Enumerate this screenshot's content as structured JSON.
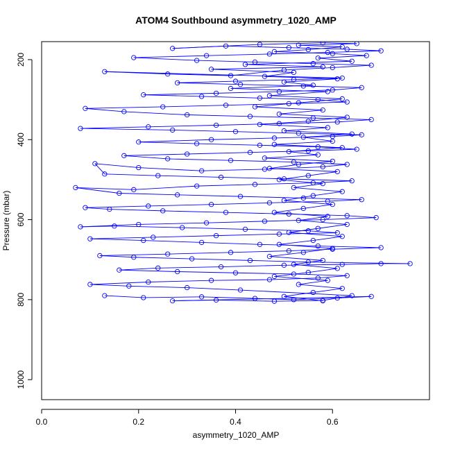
{
  "chart_data": {
    "type": "line",
    "title": "ATOM4 Southbound asymmetry_1020_AMP",
    "xlabel": "asymmetry_1020_AMP",
    "ylabel": "Pressure (mbar)",
    "xlim": [
      0.0,
      0.8
    ],
    "ylim": [
      1050,
      155
    ],
    "y_reversed": true,
    "x_ticks": [
      "0.0",
      "0.2",
      "0.4",
      "0.6"
    ],
    "x_tick_values": [
      0.0,
      0.2,
      0.4,
      0.6
    ],
    "y_ticks": [
      "200",
      "400",
      "600",
      "800",
      "1000"
    ],
    "y_tick_values": [
      200,
      400,
      600,
      800,
      1000
    ],
    "marker": "open-circle",
    "series_color": "#0000ff",
    "grid": false,
    "legend": "none",
    "series": [
      {
        "points": [
          [
            0.13,
            790
          ],
          [
            0.21,
            795
          ],
          [
            0.33,
            793
          ],
          [
            0.44,
            797
          ],
          [
            0.52,
            800
          ],
          [
            0.61,
            796
          ],
          [
            0.68,
            792
          ],
          [
            0.27,
            803
          ],
          [
            0.36,
            801
          ],
          [
            0.48,
            804
          ],
          [
            0.58,
            802
          ],
          [
            0.64,
            790
          ],
          [
            0.41,
            776
          ],
          [
            0.3,
            770
          ],
          [
            0.18,
            766
          ],
          [
            0.1,
            762
          ],
          [
            0.22,
            756
          ],
          [
            0.35,
            752
          ],
          [
            0.47,
            750
          ],
          [
            0.57,
            746
          ],
          [
            0.63,
            740
          ],
          [
            0.52,
            736
          ],
          [
            0.4,
            733
          ],
          [
            0.28,
            730
          ],
          [
            0.16,
            726
          ],
          [
            0.24,
            721
          ],
          [
            0.37,
            718
          ],
          [
            0.5,
            714
          ],
          [
            0.62,
            712
          ],
          [
            0.7,
            710
          ],
          [
            0.76,
            710
          ],
          [
            0.55,
            706
          ],
          [
            0.43,
            702
          ],
          [
            0.31,
            698
          ],
          [
            0.19,
            694
          ],
          [
            0.12,
            690
          ],
          [
            0.26,
            686
          ],
          [
            0.39,
            682
          ],
          [
            0.51,
            678
          ],
          [
            0.6,
            674
          ],
          [
            0.7,
            670
          ],
          [
            0.57,
            666
          ],
          [
            0.45,
            662
          ],
          [
            0.33,
            657
          ],
          [
            0.21,
            652
          ],
          [
            0.1,
            648
          ],
          [
            0.23,
            644
          ],
          [
            0.36,
            640
          ],
          [
            0.49,
            636
          ],
          [
            0.61,
            633
          ],
          [
            0.55,
            628
          ],
          [
            0.42,
            624
          ],
          [
            0.29,
            620
          ],
          [
            0.15,
            616
          ],
          [
            0.08,
            618
          ],
          [
            0.2,
            612
          ],
          [
            0.34,
            608
          ],
          [
            0.46,
            604
          ],
          [
            0.58,
            600
          ],
          [
            0.69,
            595
          ],
          [
            0.63,
            590
          ],
          [
            0.51,
            586
          ],
          [
            0.38,
            582
          ],
          [
            0.25,
            578
          ],
          [
            0.14,
            574
          ],
          [
            0.09,
            570
          ],
          [
            0.22,
            566
          ],
          [
            0.35,
            562
          ],
          [
            0.47,
            558
          ],
          [
            0.59,
            554
          ],
          [
            0.66,
            550
          ],
          [
            0.54,
            546
          ],
          [
            0.41,
            542
          ],
          [
            0.28,
            538
          ],
          [
            0.16,
            534
          ],
          [
            0.07,
            520
          ],
          [
            0.19,
            525
          ],
          [
            0.32,
            516
          ],
          [
            0.44,
            512
          ],
          [
            0.56,
            508
          ],
          [
            0.64,
            503
          ],
          [
            0.5,
            498
          ],
          [
            0.37,
            494
          ],
          [
            0.24,
            490
          ],
          [
            0.13,
            486
          ],
          [
            0.11,
            460
          ],
          [
            0.2,
            470
          ],
          [
            0.33,
            478
          ],
          [
            0.46,
            474
          ],
          [
            0.58,
            468
          ],
          [
            0.63,
            462
          ],
          [
            0.52,
            456
          ],
          [
            0.39,
            452
          ],
          [
            0.26,
            448
          ],
          [
            0.17,
            440
          ],
          [
            0.3,
            436
          ],
          [
            0.43,
            432
          ],
          [
            0.55,
            428
          ],
          [
            0.65,
            424
          ],
          [
            0.57,
            418
          ],
          [
            0.45,
            414
          ],
          [
            0.32,
            410
          ],
          [
            0.2,
            406
          ],
          [
            0.35,
            400
          ],
          [
            0.48,
            396
          ],
          [
            0.6,
            392
          ],
          [
            0.66,
            388
          ],
          [
            0.53,
            384
          ],
          [
            0.4,
            380
          ],
          [
            0.27,
            376
          ],
          [
            0.08,
            372
          ],
          [
            0.22,
            368
          ],
          [
            0.36,
            364
          ],
          [
            0.49,
            360
          ],
          [
            0.61,
            356
          ],
          [
            0.68,
            350
          ],
          [
            0.56,
            346
          ],
          [
            0.43,
            342
          ],
          [
            0.3,
            338
          ],
          [
            0.17,
            330
          ],
          [
            0.09,
            322
          ],
          [
            0.25,
            318
          ],
          [
            0.38,
            314
          ],
          [
            0.51,
            310
          ],
          [
            0.63,
            306
          ],
          [
            0.57,
            300
          ],
          [
            0.45,
            296
          ],
          [
            0.33,
            292
          ],
          [
            0.21,
            288
          ],
          [
            0.36,
            284
          ],
          [
            0.49,
            280
          ],
          [
            0.6,
            276
          ],
          [
            0.66,
            270
          ],
          [
            0.54,
            266
          ],
          [
            0.41,
            262
          ],
          [
            0.28,
            258
          ],
          [
            0.4,
            254
          ],
          [
            0.52,
            250
          ],
          [
            0.62,
            246
          ],
          [
            0.13,
            230
          ],
          [
            0.26,
            236
          ],
          [
            0.39,
            240
          ],
          [
            0.5,
            226
          ],
          [
            0.6,
            220
          ],
          [
            0.68,
            214
          ],
          [
            0.56,
            210
          ],
          [
            0.44,
            206
          ],
          [
            0.32,
            202
          ],
          [
            0.19,
            195
          ],
          [
            0.34,
            190
          ],
          [
            0.47,
            186
          ],
          [
            0.59,
            182
          ],
          [
            0.7,
            178
          ],
          [
            0.63,
            174
          ],
          [
            0.51,
            170
          ],
          [
            0.38,
            166
          ],
          [
            0.27,
            172
          ],
          [
            0.45,
            162
          ],
          [
            0.58,
            158
          ],
          [
            0.65,
            160
          ],
          [
            0.53,
            164
          ],
          [
            0.62,
            168
          ],
          [
            0.55,
            175
          ],
          [
            0.48,
            180
          ],
          [
            0.6,
            185
          ],
          [
            0.67,
            190
          ],
          [
            0.57,
            196
          ],
          [
            0.64,
            204
          ],
          [
            0.42,
            212
          ],
          [
            0.58,
            218
          ],
          [
            0.35,
            224
          ],
          [
            0.52,
            232
          ],
          [
            0.46,
            242
          ],
          [
            0.61,
            248
          ],
          [
            0.5,
            256
          ],
          [
            0.56,
            264
          ],
          [
            0.39,
            272
          ],
          [
            0.59,
            280
          ],
          [
            0.47,
            290
          ],
          [
            0.62,
            298
          ],
          [
            0.53,
            308
          ],
          [
            0.44,
            318
          ],
          [
            0.58,
            326
          ],
          [
            0.49,
            336
          ],
          [
            0.63,
            344
          ],
          [
            0.55,
            354
          ],
          [
            0.45,
            362
          ],
          [
            0.59,
            370
          ],
          [
            0.5,
            378
          ],
          [
            0.64,
            386
          ],
          [
            0.54,
            394
          ],
          [
            0.6,
            404
          ],
          [
            0.48,
            412
          ],
          [
            0.62,
            420
          ],
          [
            0.51,
            430
          ],
          [
            0.57,
            438
          ],
          [
            0.46,
            446
          ],
          [
            0.6,
            454
          ],
          [
            0.53,
            462
          ],
          [
            0.47,
            472
          ],
          [
            0.61,
            480
          ],
          [
            0.55,
            490
          ],
          [
            0.49,
            500
          ],
          [
            0.58,
            510
          ],
          [
            0.52,
            520
          ],
          [
            0.62,
            530
          ],
          [
            0.56,
            540
          ],
          [
            0.5,
            552
          ],
          [
            0.6,
            562
          ],
          [
            0.54,
            572
          ],
          [
            0.48,
            582
          ],
          [
            0.59,
            592
          ],
          [
            0.53,
            602
          ],
          [
            0.63,
            612
          ],
          [
            0.57,
            622
          ],
          [
            0.51,
            632
          ],
          [
            0.62,
            642
          ],
          [
            0.56,
            652
          ],
          [
            0.49,
            662
          ],
          [
            0.6,
            672
          ],
          [
            0.54,
            682
          ],
          [
            0.47,
            692
          ],
          [
            0.58,
            702
          ],
          [
            0.52,
            712
          ],
          [
            0.61,
            722
          ],
          [
            0.55,
            732
          ],
          [
            0.48,
            742
          ],
          [
            0.59,
            752
          ],
          [
            0.53,
            762
          ],
          [
            0.62,
            772
          ],
          [
            0.56,
            782
          ],
          [
            0.5,
            792
          ],
          [
            0.58,
            803
          ]
        ]
      }
    ]
  }
}
